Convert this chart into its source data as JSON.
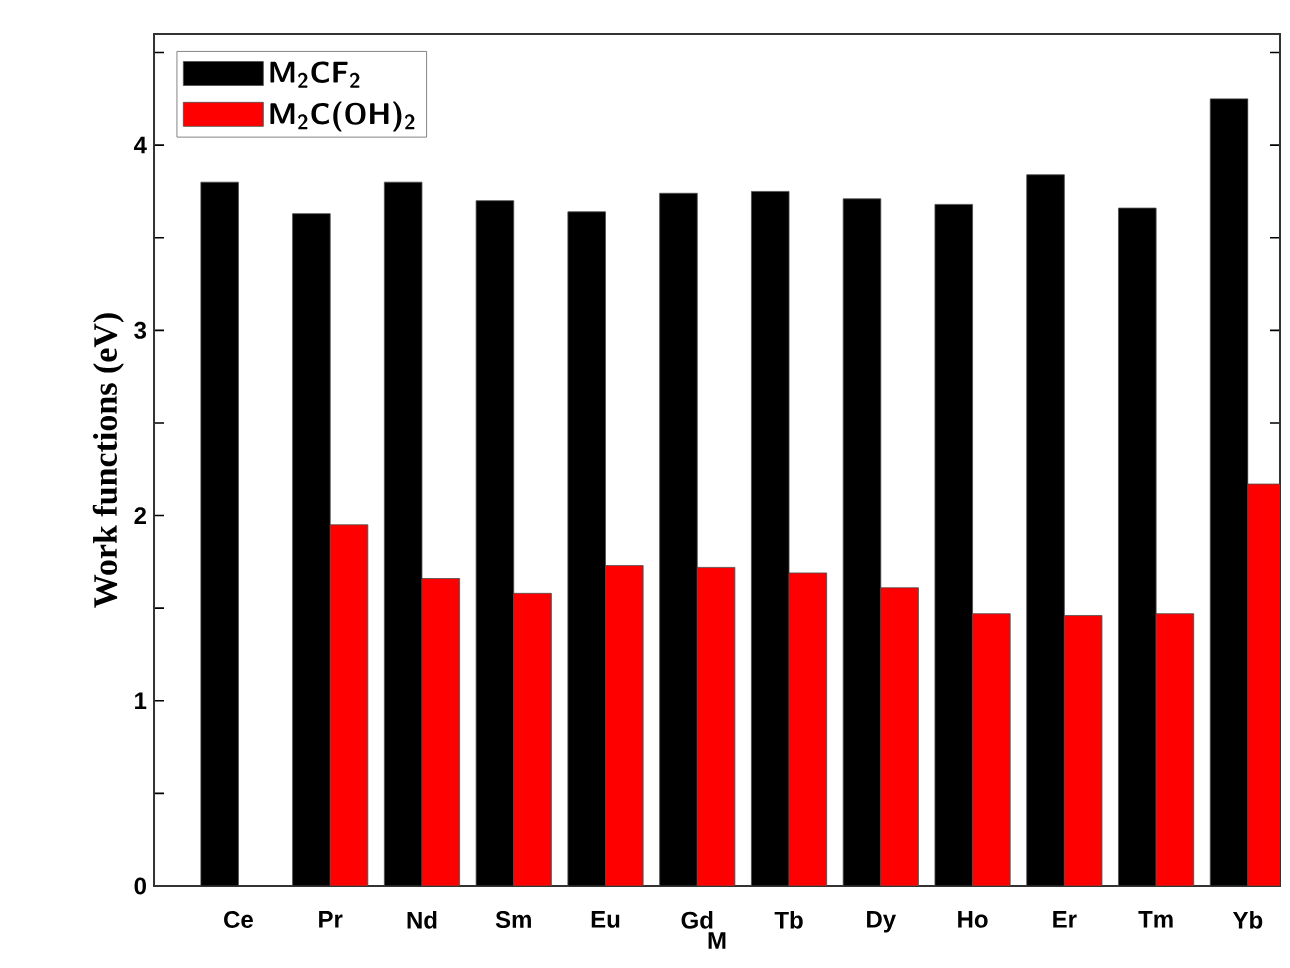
{
  "chart_data": {
    "type": "bar",
    "xlabel": "M",
    "ylabel": "Work functions (eV)",
    "categories": [
      "Ce",
      "Pr",
      "Nd",
      "Sm",
      "Eu",
      "Gd",
      "Tb",
      "Dy",
      "Ho",
      "Er",
      "Tm",
      "Yb"
    ],
    "series": [
      {
        "name": "M$_{2}$CF$_{2}$",
        "color": "#000000",
        "values": [
          3.8,
          3.63,
          3.8,
          3.7,
          3.64,
          3.74,
          3.75,
          3.71,
          3.68,
          3.84,
          3.66,
          4.25
        ]
      },
      {
        "name": "M$_{2}$C(OH)$_{2}$",
        "color": "#ff0000",
        "values": [
          null,
          1.95,
          1.66,
          1.58,
          1.73,
          1.72,
          1.69,
          1.61,
          1.47,
          1.46,
          1.47,
          2.17
        ]
      }
    ],
    "ylim": [
      0,
      4.6
    ],
    "yticks": [
      0,
      {
        "value": 0.5,
        "label": null
      },
      1,
      {
        "value": 1.5,
        "label": null
      },
      2,
      {
        "value": 2.5,
        "label": null
      },
      3,
      {
        "value": 3.5,
        "label": null
      },
      4,
      {
        "value": 4.5,
        "label": null
      }
    ],
    "legend": "top left",
    "grid": false
  }
}
